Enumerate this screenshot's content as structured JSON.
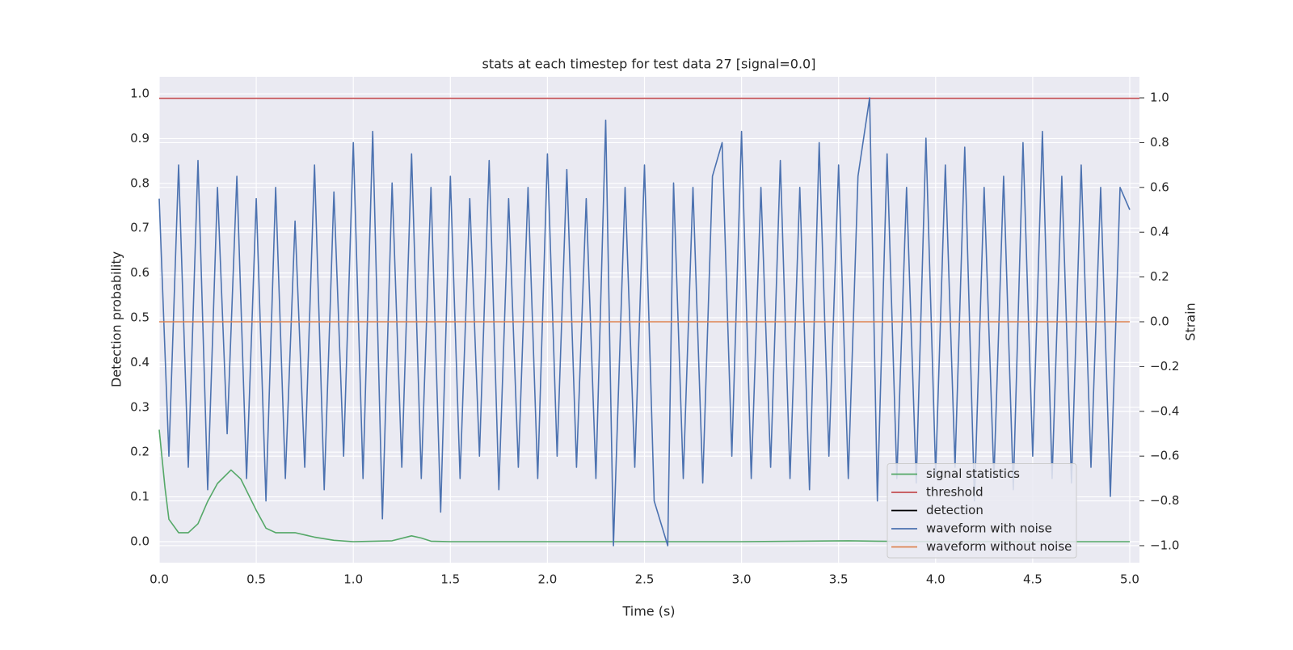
{
  "chart_data": {
    "type": "line",
    "title": "stats at each timestep for test data 27 [signal=0.0]",
    "xlabel": "Time (s)",
    "ylabel": "Detection probability",
    "y2label": "Strain",
    "xlim": [
      0,
      5.05
    ],
    "ylim": [
      -0.047,
      1.038
    ],
    "y2lim": [
      -1.076,
      1.094
    ],
    "xticks": [
      {
        "value": 0,
        "label": "0.0"
      },
      {
        "value": 0.5,
        "label": "0.5"
      },
      {
        "value": 1,
        "label": "1.0"
      },
      {
        "value": 1.5,
        "label": "1.5"
      },
      {
        "value": 2,
        "label": "2.0"
      },
      {
        "value": 2.5,
        "label": "2.5"
      },
      {
        "value": 3,
        "label": "3.0"
      },
      {
        "value": 3.5,
        "label": "3.5"
      },
      {
        "value": 4,
        "label": "4.0"
      },
      {
        "value": 4.5,
        "label": "4.5"
      },
      {
        "value": 5,
        "label": "5.0"
      }
    ],
    "yticks": [
      {
        "value": 0,
        "label": "0.0"
      },
      {
        "value": 0.1,
        "label": "0.1"
      },
      {
        "value": 0.2,
        "label": "0.2"
      },
      {
        "value": 0.3,
        "label": "0.3"
      },
      {
        "value": 0.4,
        "label": "0.4"
      },
      {
        "value": 0.5,
        "label": "0.5"
      },
      {
        "value": 0.6,
        "label": "0.6"
      },
      {
        "value": 0.7,
        "label": "0.7"
      },
      {
        "value": 0.8,
        "label": "0.8"
      },
      {
        "value": 0.9,
        "label": "0.9"
      },
      {
        "value": 1,
        "label": "1.0"
      }
    ],
    "y2ticks": [
      {
        "value": -1,
        "label": "−1.0"
      },
      {
        "value": -0.8,
        "label": "−0.8"
      },
      {
        "value": -0.6,
        "label": "−0.6"
      },
      {
        "value": -0.4,
        "label": "−0.4"
      },
      {
        "value": -0.2,
        "label": "−0.2"
      },
      {
        "value": 0,
        "label": "0.0"
      },
      {
        "value": 0.2,
        "label": "0.2"
      },
      {
        "value": 0.4,
        "label": "0.4"
      },
      {
        "value": 0.6,
        "label": "0.6"
      },
      {
        "value": 0.8,
        "label": "0.8"
      },
      {
        "value": 1,
        "label": "1.0"
      }
    ],
    "grid": true,
    "legend": "lower right",
    "series": [
      {
        "name": "signal statistics",
        "color": "#55a868",
        "axis": "y",
        "x": [
          0,
          0.03,
          0.05,
          0.1,
          0.15,
          0.2,
          0.25,
          0.3,
          0.37,
          0.42,
          0.5,
          0.55,
          0.6,
          0.7,
          0.8,
          0.9,
          1.0,
          1.2,
          1.3,
          1.35,
          1.4,
          1.5,
          2.0,
          3.0,
          3.55,
          3.7,
          4.0,
          5.0
        ],
        "values": [
          0.25,
          0.12,
          0.05,
          0.02,
          0.02,
          0.04,
          0.09,
          0.13,
          0.16,
          0.14,
          0.07,
          0.03,
          0.02,
          0.02,
          0.01,
          0.003,
          0,
          0.002,
          0.013,
          0.008,
          0.001,
          0,
          0,
          0,
          0.002,
          0.001,
          0,
          0
        ]
      },
      {
        "name": "threshold",
        "color": "#c44e52",
        "axis": "y",
        "x": [
          0,
          5.05
        ],
        "values": [
          0.99,
          0.99
        ]
      },
      {
        "name": "detection",
        "color": "#000000",
        "axis": "y",
        "x": [],
        "values": []
      },
      {
        "name": "waveform with noise",
        "color": "#4c72b0",
        "axis": "y2",
        "x": [
          0,
          0.05,
          0.1,
          0.15,
          0.2,
          0.25,
          0.3,
          0.35,
          0.4,
          0.45,
          0.5,
          0.55,
          0.6,
          0.65,
          0.7,
          0.75,
          0.8,
          0.85,
          0.9,
          0.95,
          1.0,
          1.05,
          1.1,
          1.15,
          1.2,
          1.25,
          1.3,
          1.35,
          1.4,
          1.45,
          1.5,
          1.55,
          1.6,
          1.65,
          1.7,
          1.75,
          1.8,
          1.85,
          1.9,
          1.95,
          2.0,
          2.05,
          2.1,
          2.15,
          2.2,
          2.25,
          2.3,
          2.34,
          2.4,
          2.45,
          2.5,
          2.55,
          2.62,
          2.65,
          2.7,
          2.75,
          2.8,
          2.85,
          2.9,
          2.95,
          3.0,
          3.05,
          3.1,
          3.15,
          3.2,
          3.25,
          3.3,
          3.35,
          3.4,
          3.45,
          3.5,
          3.55,
          3.6,
          3.66,
          3.7,
          3.75,
          3.8,
          3.85,
          3.9,
          3.95,
          4.0,
          4.05,
          4.1,
          4.15,
          4.2,
          4.25,
          4.3,
          4.35,
          4.4,
          4.45,
          4.5,
          4.55,
          4.6,
          4.65,
          4.7,
          4.75,
          4.8,
          4.85,
          4.9,
          4.95,
          5.0
        ],
        "values": [
          0.55,
          -0.6,
          0.7,
          -0.65,
          0.72,
          -0.75,
          0.6,
          -0.5,
          0.65,
          -0.7,
          0.55,
          -0.8,
          0.6,
          -0.7,
          0.45,
          -0.65,
          0.7,
          -0.75,
          0.58,
          -0.6,
          0.8,
          -0.7,
          0.85,
          -0.88,
          0.62,
          -0.65,
          0.75,
          -0.7,
          0.6,
          -0.85,
          0.65,
          -0.7,
          0.55,
          -0.6,
          0.72,
          -0.75,
          0.55,
          -0.65,
          0.6,
          -0.7,
          0.75,
          -0.6,
          0.68,
          -0.65,
          0.55,
          -0.7,
          0.9,
          -1.0,
          0.6,
          -0.65,
          0.7,
          -0.8,
          -1.0,
          0.62,
          -0.7,
          0.6,
          -0.72,
          0.65,
          0.8,
          -0.6,
          0.85,
          -0.7,
          0.6,
          -0.65,
          0.72,
          -0.7,
          0.6,
          -0.75,
          0.8,
          -0.6,
          0.7,
          -0.7,
          0.65,
          1.0,
          -0.8,
          0.75,
          -0.7,
          0.6,
          -0.72,
          0.82,
          -0.68,
          0.7,
          -0.65,
          0.78,
          -0.8,
          0.6,
          -0.7,
          0.65,
          -0.75,
          0.8,
          -0.6,
          0.85,
          -0.7,
          0.65,
          -0.72,
          0.7,
          -0.65,
          0.6,
          -0.78,
          0.6,
          0.5
        ]
      },
      {
        "name": "waveform without noise",
        "color": "#dd8452",
        "axis": "y2",
        "x": [
          0,
          5.0
        ],
        "values": [
          0,
          0
        ]
      }
    ]
  }
}
